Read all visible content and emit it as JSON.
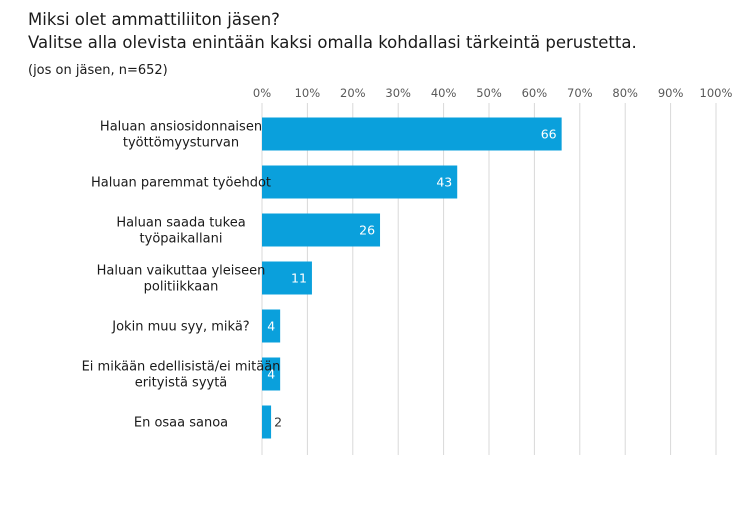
{
  "chart_data": {
    "type": "bar",
    "orientation": "horizontal",
    "title": "Miksi olet ammattiliiton jäsen?",
    "subtitle": "Valitse alla olevista enintään kaksi omalla kohdallasi tärkeintä perustetta.",
    "note": "(jos on jäsen, n=652)",
    "categories": [
      [
        "Haluan ansiosidonnaisen",
        "työttömyysturvan"
      ],
      [
        "Haluan paremmat työehdot"
      ],
      [
        "Haluan saada tukea",
        "työpaikallani"
      ],
      [
        "Haluan vaikuttaa yleiseen",
        "politiikkaan"
      ],
      [
        "Jokin muu syy, mikä?"
      ],
      [
        "Ei mikään edellisistä/ei mitään",
        "erityistä syytä"
      ],
      [
        "En osaa sanoa"
      ]
    ],
    "values": [
      66,
      43,
      26,
      11,
      4,
      4,
      2
    ],
    "xlim": [
      0,
      100
    ],
    "xticks": [
      "0%",
      "10%",
      "20%",
      "30%",
      "40%",
      "50%",
      "60%",
      "70%",
      "80%",
      "90%",
      "100%"
    ],
    "grid": true,
    "bar_color": "#0aa0dc",
    "label_color_inside": "#ffffff",
    "label_color_outside": "#333333"
  }
}
